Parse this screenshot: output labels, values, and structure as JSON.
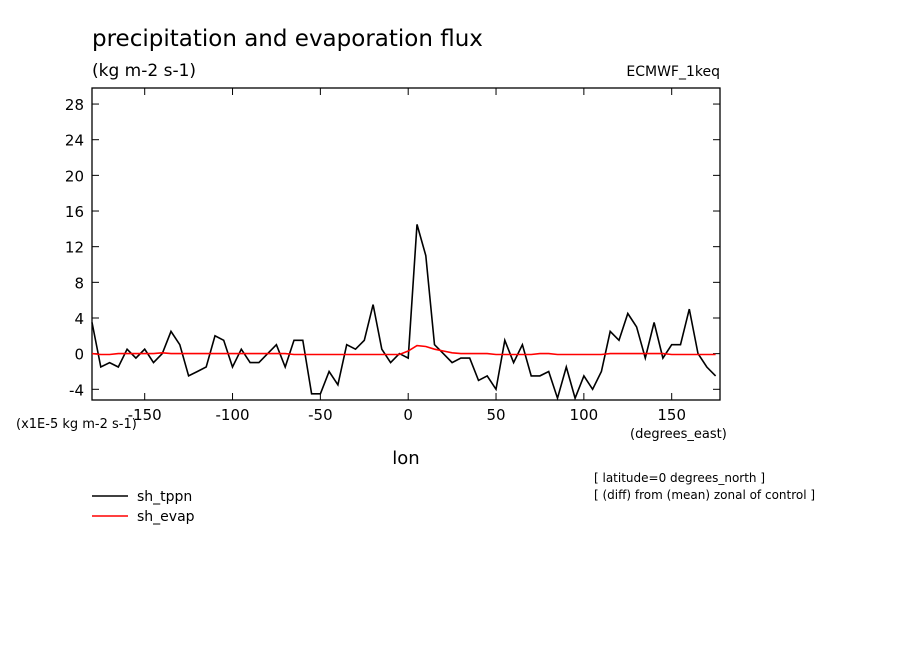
{
  "chart_data": {
    "type": "line",
    "title": "precipitation and evaporation flux",
    "subtitle": "(kg m-2 s-1)",
    "source": "ECMWF_1keq",
    "y_unit_label": "(x1E-5 kg m-2 s-1)",
    "x_unit_label": "(degrees_east)",
    "x_label": "lon",
    "notes": [
      "[ latitude=0 degrees_north ]",
      "[ (diff) from (mean) zonal of control ]"
    ],
    "xlim": [
      -180,
      177.5
    ],
    "ylim": [
      -5.2,
      29.8
    ],
    "xticks": [
      -150,
      -100,
      -50,
      0,
      50,
      100,
      150
    ],
    "yticks": [
      -4,
      0,
      4,
      8,
      12,
      16,
      20,
      24,
      28
    ],
    "x": [
      -180,
      -175,
      -170,
      -165,
      -160,
      -155,
      -150,
      -145,
      -140,
      -135,
      -130,
      -125,
      -120,
      -115,
      -110,
      -105,
      -100,
      -95,
      -90,
      -85,
      -80,
      -75,
      -70,
      -65,
      -60,
      -55,
      -50,
      -45,
      -40,
      -35,
      -30,
      -25,
      -20,
      -15,
      -10,
      -5,
      0,
      5,
      10,
      15,
      20,
      25,
      30,
      35,
      40,
      45,
      50,
      55,
      60,
      65,
      70,
      75,
      80,
      85,
      90,
      95,
      100,
      105,
      110,
      115,
      120,
      125,
      130,
      135,
      140,
      145,
      150,
      155,
      160,
      165,
      170,
      175
    ],
    "series": [
      {
        "name": "sh_tppn",
        "color": "#000000",
        "values": [
          3.5,
          -1.5,
          -1,
          -1.5,
          0.5,
          -0.5,
          0.5,
          -1,
          0,
          2.5,
          1,
          -2.5,
          -2,
          -1.5,
          2,
          1.5,
          -1.5,
          0.5,
          -1,
          -1,
          0,
          1,
          -1.5,
          1.5,
          1.5,
          -4.5,
          -4.5,
          -2,
          -3.5,
          1,
          0.5,
          1.5,
          5.5,
          0.5,
          -1,
          0,
          -0.5,
          14.5,
          11,
          1,
          0,
          -1,
          -0.5,
          -0.5,
          -3,
          -2.5,
          -4,
          1.5,
          -1,
          1,
          -2.5,
          -2.5,
          -2,
          -5,
          -1.5,
          -5,
          -2.5,
          -4,
          -2,
          2.5,
          1.5,
          4.5,
          3,
          -0.5,
          3.5,
          -0.5,
          1,
          1,
          5,
          0,
          -1.5,
          -2.5
        ]
      },
      {
        "name": "sh_evap",
        "color": "#ff0000",
        "values": [
          0,
          -0.1,
          -0.1,
          0,
          0,
          0,
          0,
          0,
          0.1,
          0,
          0,
          0,
          0,
          0,
          0,
          0,
          0,
          0,
          0,
          0,
          0,
          0,
          0,
          -0.1,
          -0.1,
          -0.1,
          -0.1,
          -0.1,
          -0.1,
          -0.1,
          -0.1,
          -0.1,
          -0.1,
          -0.1,
          -0.1,
          -0.1,
          0.3,
          0.9,
          0.8,
          0.5,
          0.3,
          0.1,
          0,
          0,
          0,
          0,
          -0.1,
          -0.1,
          -0.1,
          -0.1,
          -0.1,
          0,
          0,
          -0.1,
          -0.1,
          -0.1,
          -0.1,
          -0.1,
          -0.1,
          0,
          0,
          0,
          0,
          0,
          0,
          0,
          -0.1,
          -0.1,
          -0.1,
          -0.1,
          -0.1,
          -0.1
        ]
      }
    ]
  }
}
